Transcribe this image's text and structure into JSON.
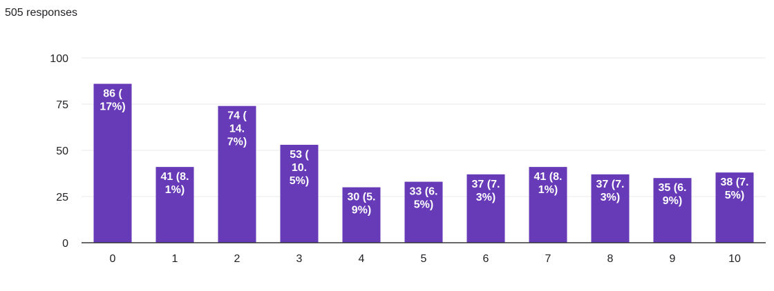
{
  "header": {
    "responses_text": "505 responses"
  },
  "colors": {
    "bar": "#673ab7",
    "grid": "#e8e8e8",
    "axis": "#333333"
  },
  "chart_data": {
    "type": "bar",
    "categories": [
      "0",
      "1",
      "2",
      "3",
      "4",
      "5",
      "6",
      "7",
      "8",
      "9",
      "10"
    ],
    "values": [
      86,
      41,
      74,
      53,
      30,
      33,
      37,
      41,
      37,
      35,
      38
    ],
    "data_labels": [
      [
        "86 (",
        "17%)"
      ],
      [
        "41 (8.",
        "1%)"
      ],
      [
        "74 (",
        "14.",
        "7%)"
      ],
      [
        "53 (",
        "10.",
        "5%)"
      ],
      [
        "30 (5.",
        "9%)"
      ],
      [
        "33 (6.",
        "5%)"
      ],
      [
        "37 (7.",
        "3%)"
      ],
      [
        "41 (8.",
        "1%)"
      ],
      [
        "37 (7.",
        "3%)"
      ],
      [
        "35 (6.",
        "9%)"
      ],
      [
        "38 (7.",
        "5%)"
      ]
    ],
    "y_ticks": [
      0,
      25,
      50,
      75,
      100
    ],
    "ylim": [
      0,
      100
    ],
    "grid": true,
    "title": "",
    "xlabel": "",
    "ylabel": ""
  }
}
